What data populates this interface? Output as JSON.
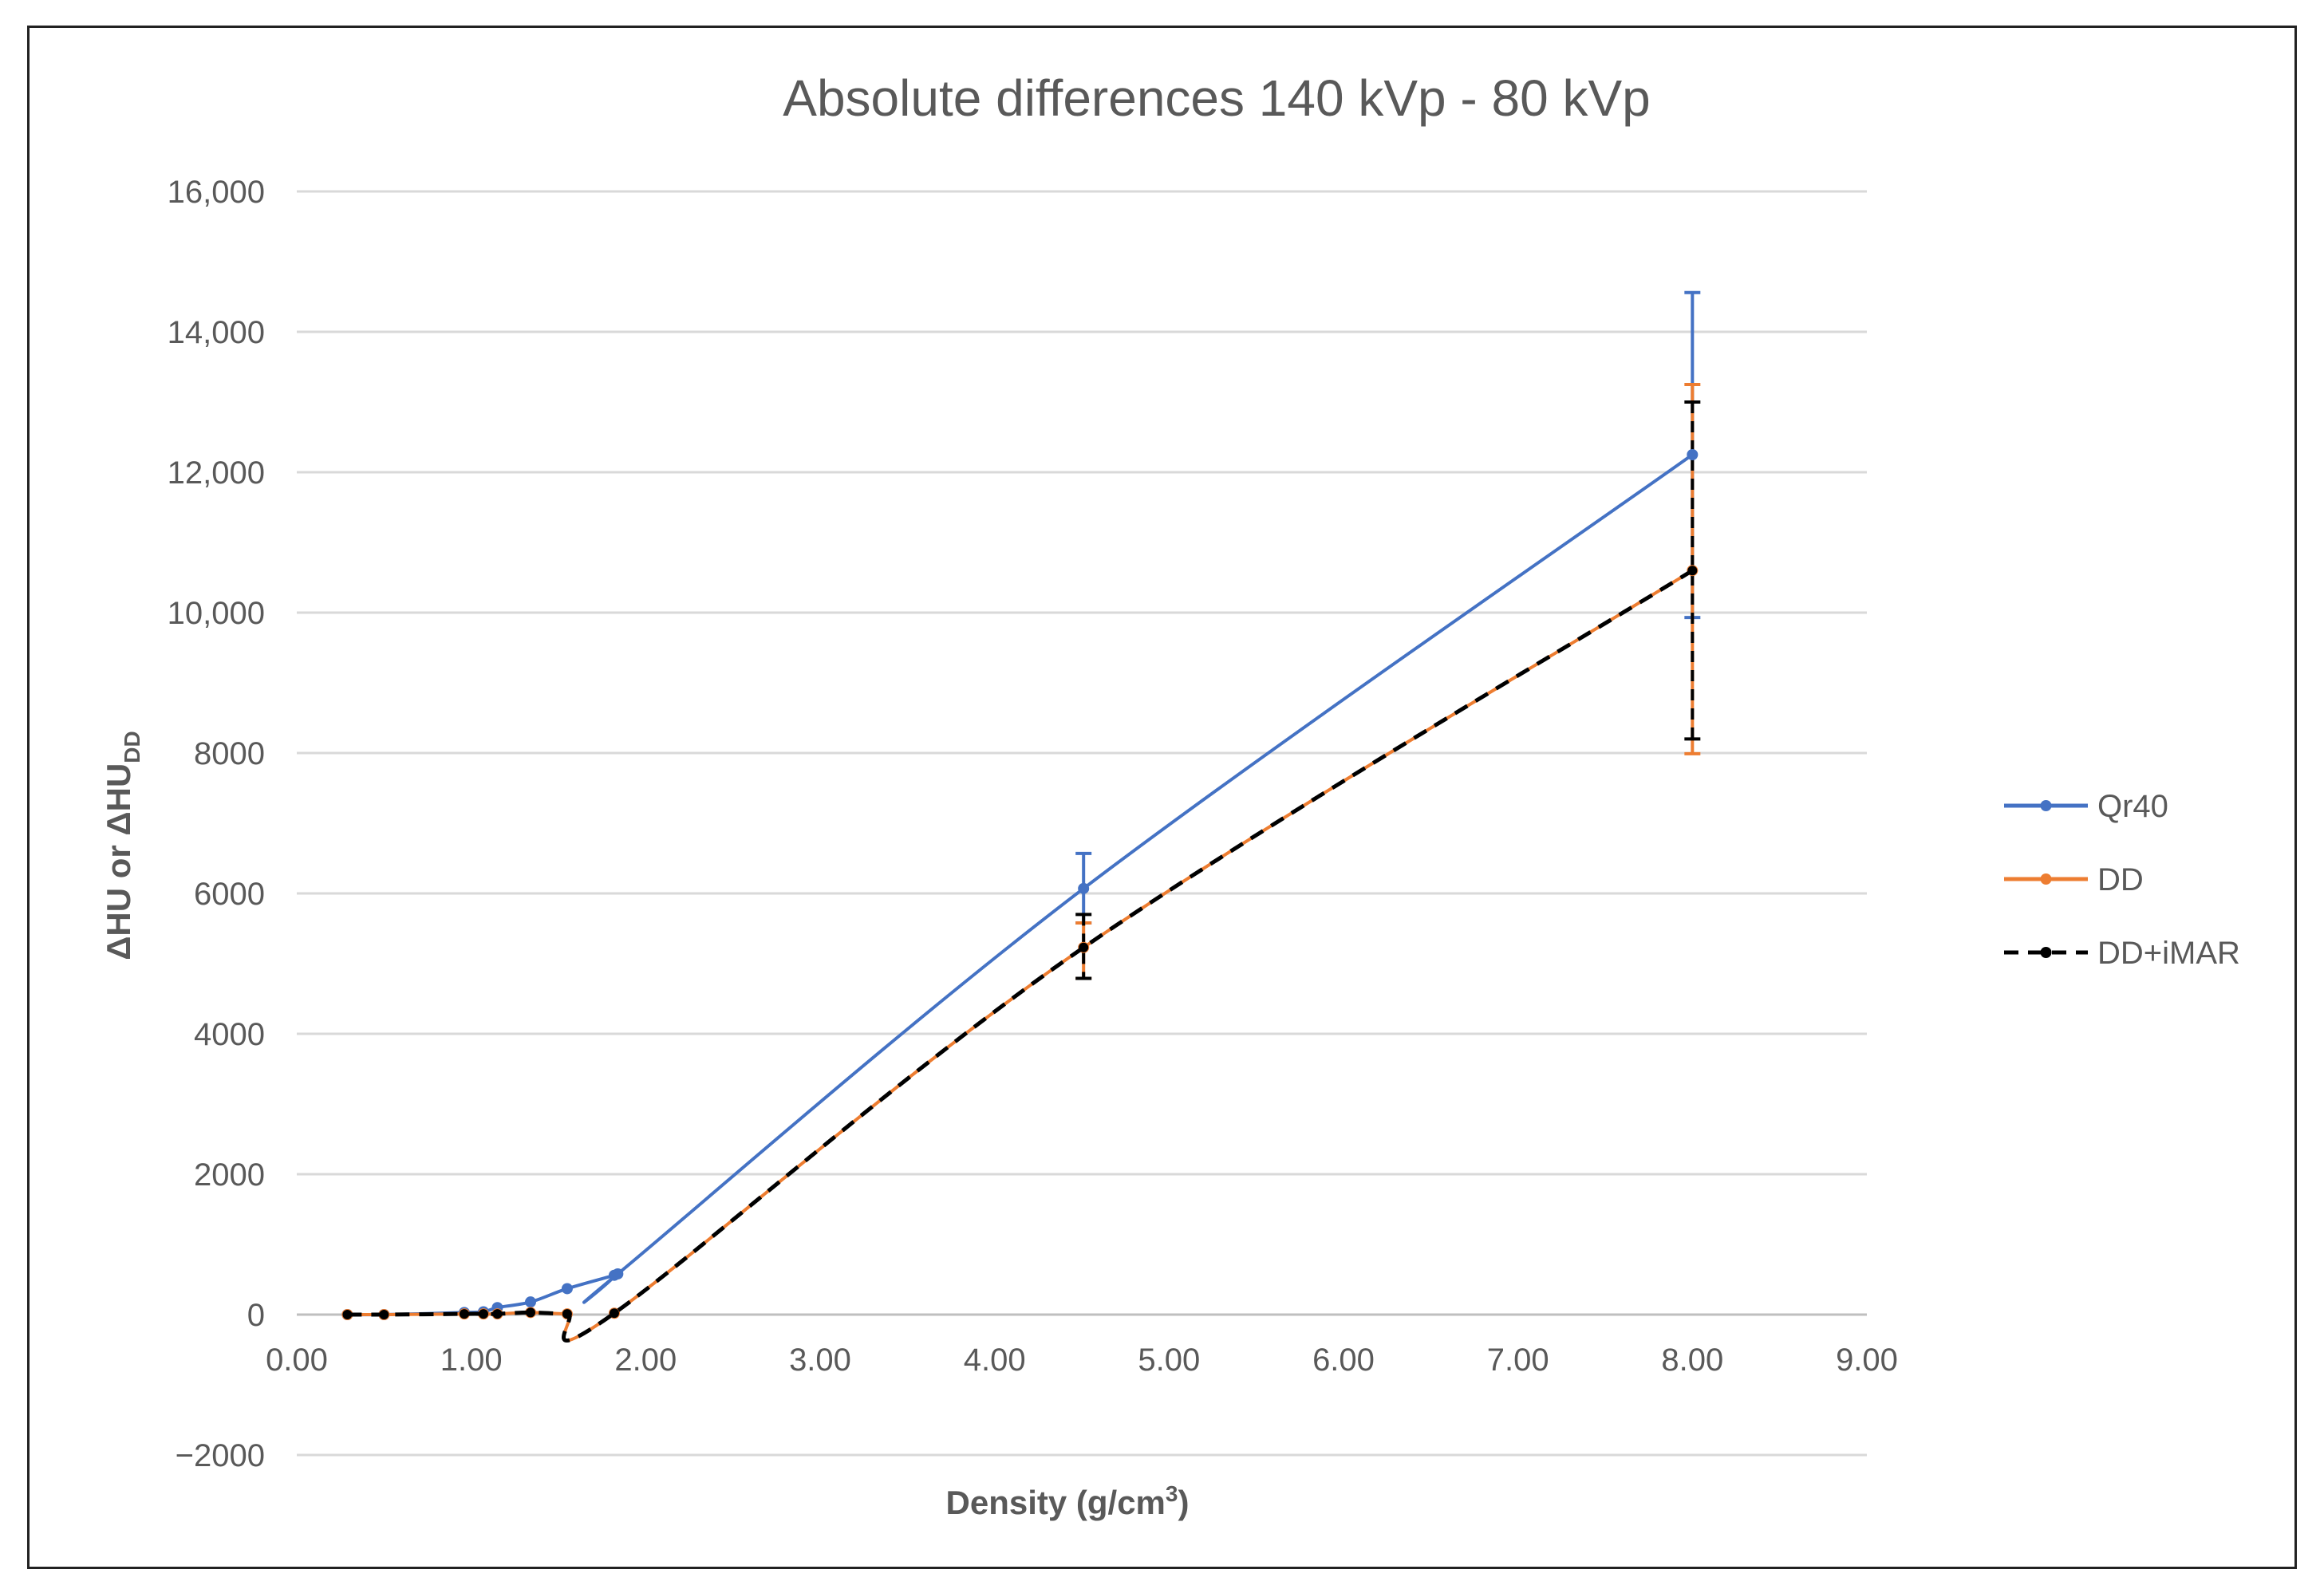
{
  "chart_data": {
    "type": "line",
    "title": "Absolute differences 140 kVp - 80 kVp",
    "xlabel": "Density (g/cm³)",
    "xlabel_main": "Density (g/cm",
    "xlabel_sup": "3",
    "xlabel_end": ")",
    "ylabel": "ΔHU or ΔHU_DD",
    "ylabel_main": "ΔHU or ΔHU",
    "ylabel_sub": "DD",
    "xlim": [
      0,
      9
    ],
    "ylim": [
      -2000,
      16000
    ],
    "x_ticks": [
      {
        "value": 0,
        "label": "0.00"
      },
      {
        "value": 1,
        "label": "1.00"
      },
      {
        "value": 2,
        "label": "2.00"
      },
      {
        "value": 3,
        "label": "3.00"
      },
      {
        "value": 4,
        "label": "4.00"
      },
      {
        "value": 5,
        "label": "5.00"
      },
      {
        "value": 6,
        "label": "6.00"
      },
      {
        "value": 7,
        "label": "7.00"
      },
      {
        "value": 8,
        "label": "8.00"
      },
      {
        "value": 9,
        "label": "9.00"
      }
    ],
    "y_ticks": [
      {
        "value": -2000,
        "label": "−2000"
      },
      {
        "value": 0,
        "label": "0"
      },
      {
        "value": 2000,
        "label": "2000"
      },
      {
        "value": 4000,
        "label": "4000"
      },
      {
        "value": 6000,
        "label": "6000"
      },
      {
        "value": 8000,
        "label": "8000"
      },
      {
        "value": 10000,
        "label": "10,000"
      },
      {
        "value": 12000,
        "label": "12,000"
      },
      {
        "value": 14000,
        "label": "14,000"
      },
      {
        "value": 16000,
        "label": "16,000"
      }
    ],
    "grid": true,
    "legend_position": "right",
    "series": [
      {
        "name": "Qr40",
        "color": "#4472C4",
        "dashed": false,
        "x": [
          0.29,
          0.5,
          0.96,
          1.07,
          1.15,
          1.34,
          1.55,
          1.82,
          1.84,
          4.51,
          8.0
        ],
        "y": [
          0,
          0,
          30,
          40,
          100,
          180,
          370,
          560,
          580,
          6070,
          12250
        ],
        "errors": [
          {
            "x": 4.51,
            "low": 5580,
            "high": 6570
          },
          {
            "x": 8.0,
            "low": 9930,
            "high": 14560
          }
        ]
      },
      {
        "name": "DD",
        "color": "#ED7D31",
        "dashed": false,
        "x": [
          0.29,
          0.5,
          0.96,
          1.07,
          1.15,
          1.34,
          1.55,
          1.82,
          4.51,
          8.0
        ],
        "y": [
          0,
          0,
          10,
          10,
          10,
          30,
          10,
          20,
          5230,
          10600
        ],
        "errors": [
          {
            "x": 4.51,
            "low": 4790,
            "high": 5580
          },
          {
            "x": 8.0,
            "low": 7990,
            "high": 13250
          }
        ]
      },
      {
        "name": "DD+iMAR",
        "color": "#000000",
        "dashed": true,
        "x": [
          0.29,
          0.5,
          0.96,
          1.07,
          1.15,
          1.34,
          1.55,
          1.82,
          4.51,
          8.0
        ],
        "y": [
          0,
          0,
          10,
          10,
          10,
          30,
          10,
          20,
          5230,
          10600
        ],
        "errors": [
          {
            "x": 4.51,
            "low": 4790,
            "high": 5700
          },
          {
            "x": 8.0,
            "low": 8200,
            "high": 13000
          }
        ]
      }
    ]
  }
}
